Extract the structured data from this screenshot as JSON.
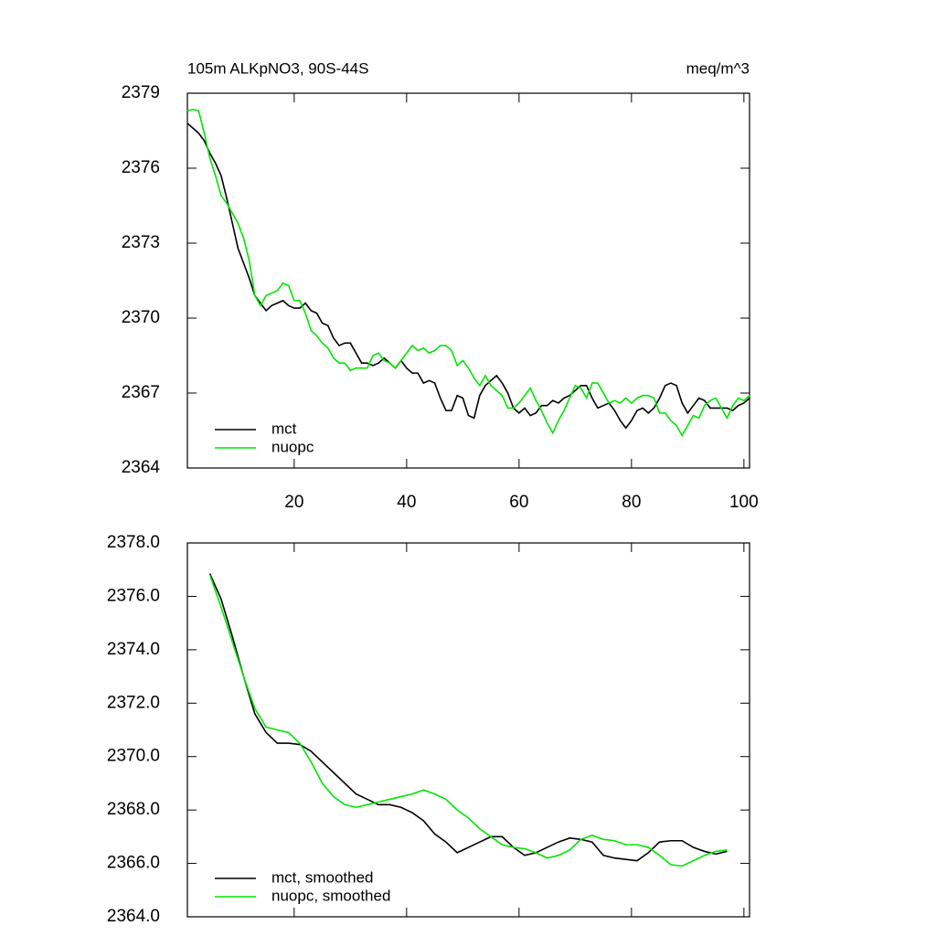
{
  "chart_data": [
    {
      "type": "line",
      "title_left": "105m ALKpNO3, 90S-44S",
      "title_right": "meq/m^3",
      "x": [
        1,
        2,
        3,
        4,
        5,
        6,
        7,
        8,
        9,
        10,
        11,
        12,
        13,
        14,
        15,
        16,
        17,
        18,
        19,
        20,
        21,
        22,
        23,
        24,
        25,
        26,
        27,
        28,
        29,
        30,
        31,
        32,
        33,
        34,
        35,
        36,
        37,
        38,
        39,
        40,
        41,
        42,
        43,
        44,
        45,
        46,
        47,
        48,
        49,
        50,
        51,
        52,
        53,
        54,
        55,
        56,
        57,
        58,
        59,
        60,
        61,
        62,
        63,
        64,
        65,
        66,
        67,
        68,
        69,
        70,
        71,
        72,
        73,
        74,
        75,
        76,
        77,
        78,
        79,
        80,
        81,
        82,
        83,
        84,
        85,
        86,
        87,
        88,
        89,
        90,
        91,
        92,
        93,
        94,
        95,
        96,
        97,
        98,
        99,
        100,
        101
      ],
      "series": [
        {
          "name": "mct",
          "color": "#000000",
          "values": [
            2377.8,
            2377.6,
            2377.4,
            2377.1,
            2376.6,
            2376.2,
            2375.7,
            2374.8,
            2373.8,
            2372.8,
            2372.2,
            2371.6,
            2370.9,
            2370.6,
            2370.3,
            2370.5,
            2370.6,
            2370.7,
            2370.5,
            2370.4,
            2370.4,
            2370.6,
            2370.3,
            2370.2,
            2369.8,
            2369.7,
            2369.2,
            2368.9,
            2369.0,
            2369.0,
            2368.6,
            2368.2,
            2368.2,
            2368.1,
            2368.2,
            2368.4,
            2368.2,
            2368.0,
            2368.3,
            2368.0,
            2367.8,
            2367.8,
            2367.4,
            2367.5,
            2367.4,
            2366.8,
            2366.3,
            2366.3,
            2366.9,
            2366.8,
            2366.1,
            2366.0,
            2366.9,
            2367.3,
            2367.5,
            2367.7,
            2367.4,
            2367.0,
            2366.4,
            2366.2,
            2366.4,
            2366.1,
            2366.2,
            2366.5,
            2366.5,
            2366.7,
            2366.6,
            2366.8,
            2366.9,
            2367.1,
            2367.3,
            2367.3,
            2366.8,
            2366.4,
            2366.5,
            2366.6,
            2366.3,
            2365.9,
            2365.6,
            2365.9,
            2366.3,
            2366.4,
            2366.2,
            2366.4,
            2366.8,
            2367.3,
            2367.4,
            2367.3,
            2366.6,
            2366.2,
            2366.5,
            2366.8,
            2366.7,
            2366.4,
            2366.4,
            2366.4,
            2366.4,
            2366.3,
            2366.5,
            2366.6,
            2366.8
          ]
        },
        {
          "name": "nuopc",
          "color": "#00e600",
          "values": [
            2378.3,
            2378.35,
            2378.3,
            2377.4,
            2376.4,
            2375.7,
            2374.9,
            2374.6,
            2374.2,
            2373.8,
            2373.2,
            2372.3,
            2370.9,
            2370.5,
            2370.9,
            2371.0,
            2371.1,
            2371.4,
            2371.3,
            2370.7,
            2370.7,
            2370.2,
            2369.5,
            2369.3,
            2369.0,
            2368.8,
            2368.4,
            2368.2,
            2368.2,
            2367.9,
            2368.0,
            2368.0,
            2368.0,
            2368.5,
            2368.6,
            2368.3,
            2368.2,
            2368.0,
            2368.3,
            2368.6,
            2368.9,
            2368.7,
            2368.8,
            2368.6,
            2368.7,
            2368.9,
            2368.9,
            2368.7,
            2368.1,
            2368.3,
            2368.0,
            2367.6,
            2367.3,
            2367.7,
            2367.3,
            2367.1,
            2366.9,
            2366.4,
            2366.4,
            2366.6,
            2366.9,
            2367.2,
            2366.7,
            2366.3,
            2365.8,
            2365.4,
            2365.9,
            2366.3,
            2366.8,
            2367.3,
            2367.2,
            2366.8,
            2367.4,
            2367.4,
            2367.0,
            2366.6,
            2366.7,
            2366.6,
            2366.8,
            2366.6,
            2366.8,
            2366.9,
            2366.9,
            2366.8,
            2366.2,
            2366.2,
            2365.9,
            2365.7,
            2365.3,
            2365.7,
            2366.1,
            2366.0,
            2366.5,
            2366.7,
            2366.8,
            2366.4,
            2366.0,
            2366.5,
            2366.8,
            2366.7,
            2366.9
          ]
        }
      ],
      "xlim": [
        1,
        101
      ],
      "xticks": [
        20,
        40,
        60,
        80,
        100
      ],
      "ylim": [
        2364,
        2379
      ],
      "yticks": [
        2364,
        2367,
        2370,
        2373,
        2376,
        2379
      ],
      "legend": "lower left"
    },
    {
      "type": "line",
      "x": [
        5,
        7,
        9,
        11,
        13,
        15,
        17,
        19,
        21,
        23,
        25,
        27,
        29,
        31,
        33,
        35,
        37,
        39,
        41,
        43,
        45,
        47,
        49,
        51,
        53,
        55,
        57,
        59,
        61,
        63,
        65,
        67,
        69,
        71,
        73,
        75,
        77,
        79,
        81,
        83,
        85,
        87,
        89,
        91,
        93,
        95,
        97
      ],
      "series": [
        {
          "name": "mct, smoothed",
          "color": "#000000",
          "values": [
            2376.85,
            2375.9,
            2374.5,
            2373.0,
            2371.6,
            2370.9,
            2370.5,
            2370.5,
            2370.45,
            2370.2,
            2369.8,
            2369.4,
            2369.0,
            2368.6,
            2368.4,
            2368.2,
            2368.2,
            2368.1,
            2367.9,
            2367.6,
            2367.1,
            2366.8,
            2366.4,
            2366.6,
            2366.8,
            2367.0,
            2367.0,
            2366.6,
            2366.3,
            2366.4,
            2366.6,
            2366.8,
            2366.95,
            2366.9,
            2366.8,
            2366.3,
            2366.2,
            2366.15,
            2366.1,
            2366.4,
            2366.8,
            2366.85,
            2366.85,
            2366.6,
            2366.45,
            2366.35,
            2366.45
          ]
        },
        {
          "name": "nuopc, smoothed",
          "color": "#00e600",
          "values": [
            2376.8,
            2375.6,
            2374.3,
            2373.0,
            2371.8,
            2371.1,
            2371.0,
            2370.9,
            2370.5,
            2369.8,
            2369.0,
            2368.5,
            2368.2,
            2368.1,
            2368.2,
            2368.3,
            2368.4,
            2368.5,
            2368.6,
            2368.75,
            2368.6,
            2368.4,
            2368.0,
            2367.7,
            2367.3,
            2367.0,
            2366.7,
            2366.6,
            2366.55,
            2366.4,
            2366.2,
            2366.3,
            2366.5,
            2366.9,
            2367.05,
            2366.9,
            2366.85,
            2366.7,
            2366.7,
            2366.6,
            2366.3,
            2365.95,
            2365.9,
            2366.1,
            2366.3,
            2366.45,
            2366.5
          ]
        }
      ],
      "xlim": [
        1,
        101
      ],
      "xticks": [
        20,
        40,
        60,
        80,
        100
      ],
      "ylim": [
        2364,
        2378
      ],
      "yticks": [
        {
          "value": 2364,
          "label": "2364.0"
        },
        {
          "value": 2366,
          "label": "2366.0"
        },
        {
          "value": 2368,
          "label": "2368.0"
        },
        {
          "value": 2370,
          "label": "2370.0"
        },
        {
          "value": 2372,
          "label": "2372.0"
        },
        {
          "value": 2374,
          "label": "2374.0"
        },
        {
          "value": 2376,
          "label": "2376.0"
        },
        {
          "value": 2378,
          "label": "2378.0"
        }
      ],
      "legend": "lower left"
    }
  ]
}
